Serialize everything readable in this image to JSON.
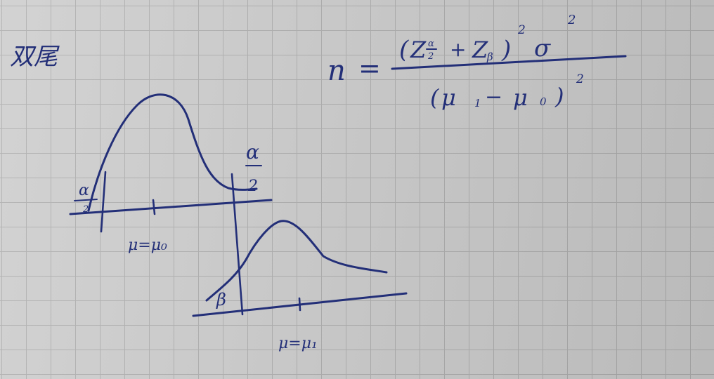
{
  "heading": "双尾",
  "formula": {
    "lhs": "n",
    "equals": "=",
    "numerator": {
      "open": "(",
      "z_alpha": "Z",
      "alpha_over": "α",
      "alpha_under": "2",
      "plus": "+",
      "z_beta": "Z",
      "beta_sub": "β",
      "close": ")",
      "power": "2",
      "sigma": "σ",
      "sigma_power": "2"
    },
    "denominator": {
      "open": "(",
      "mu1": "μ",
      "mu1_sub": "1",
      "minus": "−",
      "mu0": "μ",
      "mu0_sub": "0",
      "close": ")",
      "power": "2"
    }
  },
  "diagram": {
    "null_curve_mean_label": "μ=μ₀",
    "alt_curve_mean_label": "μ=μ₁",
    "right_alpha_top": "α",
    "right_alpha_bottom": "2",
    "left_alpha_top": "α",
    "left_alpha_bottom": "2",
    "beta_label": "β"
  },
  "ink_color": "#232f78"
}
